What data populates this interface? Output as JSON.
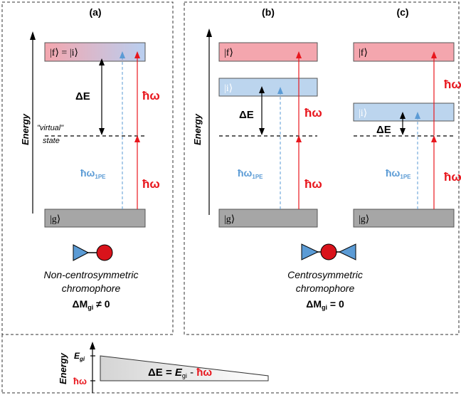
{
  "panels": {
    "a": {
      "label": "(a)",
      "excited_state": "|f⟩ = |i⟩",
      "ground_state": "|g⟩",
      "delta_e": "ΔE",
      "hbar_omega_upper": "ħω",
      "hbar_omega_lower": "ħω",
      "hbar_omega_1pe": "ħω",
      "one_pe_sub": "1PE",
      "virtual_state_1": "\"virtual\"",
      "virtual_state_2": "state",
      "energy_axis": "Energy",
      "caption_1": "Non-centrosymmetric",
      "caption_2": "chromophore",
      "dipole_main": "ΔM",
      "dipole_sub": "gi",
      "dipole_rest": " ≠ 0"
    },
    "b": {
      "label": "(b)",
      "final_state": "|f⟩",
      "intermediate_state": "|i⟩",
      "ground_state": "|g⟩",
      "delta_e": "ΔE",
      "hbar_omega_upper": "ħω",
      "hbar_omega_lower": "ħω",
      "hbar_omega_1pe": "ħω",
      "one_pe_sub": "1PE",
      "energy_axis": "Energy"
    },
    "c": {
      "label": "(c)",
      "final_state": "|f⟩",
      "intermediate_state": "|i⟩",
      "ground_state": "|g⟩",
      "delta_e": "ΔE",
      "hbar_omega_upper": "ħω",
      "hbar_omega_lower": "ħω",
      "hbar_omega_1pe": "ħω",
      "one_pe_sub": "1PE"
    },
    "bc_caption": {
      "caption_1": "Centrosymmetric",
      "caption_2": "chromophore",
      "dipole_main": "ΔM",
      "dipole_sub": "gi",
      "dipole_rest": " = 0"
    }
  },
  "bottom": {
    "energy_axis": "Energy",
    "e_gi": "E",
    "e_gi_sub": "gi",
    "hbar_omega": "ħω",
    "formula_delta": "ΔE = ",
    "formula_e": "E",
    "formula_sub": "gi",
    "formula_minus": " - ",
    "formula_hw": "ħω"
  },
  "colors": {
    "photon_red": "#e8171e",
    "one_pe_blue": "#5b9bd5",
    "state_pink": "#f4a6ae",
    "state_blue": "#bcd5ee",
    "ground_grey": "#a6a6a6",
    "dipole_red": "#d9131b",
    "dipole_blue": "#5b9bd5"
  }
}
